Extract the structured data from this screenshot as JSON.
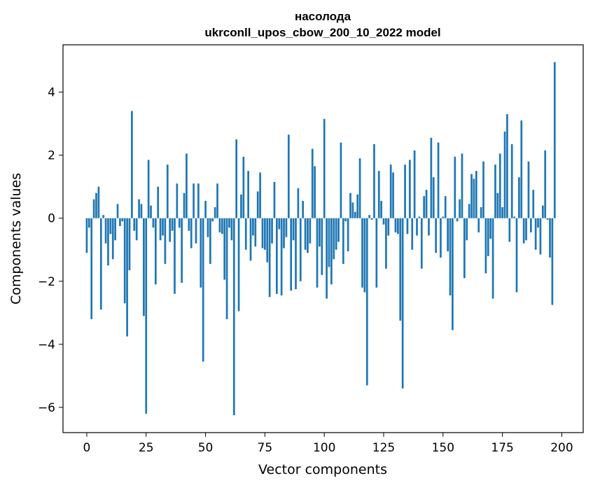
{
  "chart_data": {
    "type": "bar",
    "title_line1": "насолода",
    "title_line2": "ukrconll_upos_cbow_200_10_2022 model",
    "xlabel": "Vector components",
    "ylabel": "Components values",
    "xlim": [
      -10,
      209
    ],
    "ylim": [
      -6.8,
      5.5
    ],
    "xticks": [
      0,
      25,
      50,
      75,
      100,
      125,
      150,
      175,
      200
    ],
    "yticks": [
      -6,
      -4,
      -2,
      0,
      2,
      4
    ],
    "ytick_labels": [
      "−6",
      "−4",
      "−2",
      "0",
      "2",
      "4"
    ],
    "grid": false,
    "bar_color": "#1f77b4",
    "values": [
      -1.1,
      -0.3,
      -3.2,
      0.6,
      0.8,
      1.0,
      -2.9,
      0.1,
      -0.8,
      -1.5,
      -0.5,
      -1.3,
      -0.7,
      0.45,
      -0.25,
      -0.1,
      -2.7,
      -3.75,
      -1.65,
      3.4,
      -0.4,
      -0.7,
      0.6,
      0.45,
      -3.1,
      -6.2,
      1.85,
      0.4,
      -0.3,
      -2.1,
      1.0,
      -0.7,
      -0.55,
      -1.45,
      1.7,
      -0.75,
      -0.4,
      -2.4,
      1.1,
      -0.3,
      -2.05,
      0.8,
      2.05,
      -0.4,
      -0.95,
      1.1,
      -0.8,
      1.1,
      -2.2,
      -4.55,
      0.55,
      -0.6,
      -1.45,
      -0.1,
      0.35,
      1.1,
      -0.45,
      -0.5,
      -1.95,
      -3.2,
      -0.3,
      -0.7,
      -6.25,
      2.5,
      -2.95,
      0.75,
      1.95,
      -1.0,
      1.5,
      -1.35,
      -0.55,
      -0.9,
      0.85,
      1.45,
      -0.95,
      -1.0,
      -1.4,
      -2.5,
      -0.8,
      1.15,
      -2.4,
      -0.35,
      -2.45,
      -0.95,
      -0.6,
      2.65,
      -2.3,
      -0.7,
      -2.25,
      0.95,
      -2.0,
      0.55,
      -1.0,
      -1.1,
      -0.8,
      2.2,
      1.65,
      -2.2,
      -0.9,
      -1.8,
      3.15,
      -2.55,
      -1.55,
      -2.1,
      -1.3,
      -1.0,
      -0.75,
      2.4,
      -1.45,
      -0.1,
      -1.05,
      0.8,
      0.5,
      0.2,
      0.75,
      1.9,
      -2.2,
      -2.35,
      -5.3,
      0.1,
      -0.05,
      2.35,
      -2.2,
      1.5,
      0.55,
      -0.2,
      -1.6,
      -0.55,
      1.7,
      1.45,
      -0.45,
      -0.5,
      -3.25,
      -5.4,
      1.7,
      -0.5,
      1.85,
      -1.0,
      2.15,
      -0.55,
      0.05,
      -1.6,
      0.7,
      0.9,
      -0.55,
      2.55,
      1.3,
      -1.1,
      2.4,
      -1.25,
      0.05,
      0.7,
      -1.05,
      -2.45,
      -3.55,
      1.95,
      -0.1,
      0.6,
      2.05,
      -1.9,
      -0.7,
      0.45,
      1.4,
      1.25,
      1.5,
      -0.45,
      0.35,
      1.8,
      -1.75,
      -1.2,
      -0.65,
      -2.55,
      1.7,
      0.8,
      2.05,
      0.35,
      2.75,
      3.3,
      -0.75,
      2.35,
      0.05,
      -2.35,
      1.3,
      3.1,
      -0.8,
      -0.7,
      1.8,
      -0.45,
      0.9,
      -1.0,
      -0.3,
      -1.15,
      0.4,
      2.15,
      -0.05,
      -1.25,
      -2.75,
      4.95
    ]
  }
}
